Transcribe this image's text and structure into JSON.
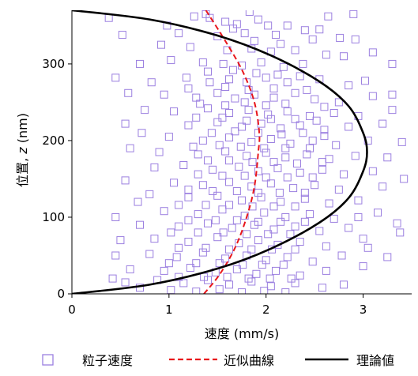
{
  "chart_data": {
    "type": "scatter",
    "xlabel": "速度 (mm/s)",
    "ylabel_prefix": "位置, ",
    "ylabel_var": "z",
    "ylabel_suffix": " (nm)",
    "xlim": [
      0,
      3.5
    ],
    "ylim": [
      0,
      370
    ],
    "xticks": [
      0,
      1,
      2,
      3
    ],
    "yticks": [
      0,
      100,
      200,
      300
    ],
    "grid": false,
    "legend_position": "bottom",
    "colors": {
      "scatter": "#9b7fe0",
      "fit": "#e8161b",
      "theory": "#000000"
    },
    "series": [
      {
        "name": "粒子速度",
        "kind": "scatter",
        "marker": "open-square",
        "points": [
          [
            1.38,
            365
          ],
          [
            1.83,
            368
          ],
          [
            1.42,
            360
          ],
          [
            1.58,
            355
          ],
          [
            1.7,
            352
          ],
          [
            1.92,
            358
          ],
          [
            2.02,
            350
          ],
          [
            2.22,
            350
          ],
          [
            2.4,
            344
          ],
          [
            2.64,
            362
          ],
          [
            1.1,
            340
          ],
          [
            1.5,
            336
          ],
          [
            1.78,
            340
          ],
          [
            2.1,
            338
          ],
          [
            2.48,
            332
          ],
          [
            2.92,
            332
          ],
          [
            0.92,
            325
          ],
          [
            1.22,
            322
          ],
          [
            1.6,
            318
          ],
          [
            1.85,
            320
          ],
          [
            2.05,
            316
          ],
          [
            2.3,
            318
          ],
          [
            2.62,
            312
          ],
          [
            2.8,
            310
          ],
          [
            1.02,
            305
          ],
          [
            1.35,
            302
          ],
          [
            1.56,
            300
          ],
          [
            1.75,
            298
          ],
          [
            1.95,
            302
          ],
          [
            2.18,
            296
          ],
          [
            2.38,
            300
          ],
          [
            0.7,
            300
          ],
          [
            0.45,
            282
          ],
          [
            0.82,
            276
          ],
          [
            1.18,
            282
          ],
          [
            1.42,
            276
          ],
          [
            1.62,
            280
          ],
          [
            1.8,
            276
          ],
          [
            2.0,
            282
          ],
          [
            2.22,
            276
          ],
          [
            2.55,
            280
          ],
          [
            2.85,
            272
          ],
          [
            3.02,
            278
          ],
          [
            0.95,
            260
          ],
          [
            1.28,
            256
          ],
          [
            1.5,
            262
          ],
          [
            1.68,
            255
          ],
          [
            1.88,
            260
          ],
          [
            2.08,
            256
          ],
          [
            2.3,
            262
          ],
          [
            2.5,
            254
          ],
          [
            2.75,
            250
          ],
          [
            3.1,
            258
          ],
          [
            3.3,
            260
          ],
          [
            0.75,
            240
          ],
          [
            1.05,
            238
          ],
          [
            1.4,
            242
          ],
          [
            1.62,
            236
          ],
          [
            1.82,
            240
          ],
          [
            2.02,
            234
          ],
          [
            2.22,
            238
          ],
          [
            2.45,
            232
          ],
          [
            2.7,
            236
          ],
          [
            2.95,
            232
          ],
          [
            3.3,
            240
          ],
          [
            0.55,
            222
          ],
          [
            1.2,
            220
          ],
          [
            1.5,
            224
          ],
          [
            1.75,
            218
          ],
          [
            1.95,
            222
          ],
          [
            2.15,
            216
          ],
          [
            2.35,
            220
          ],
          [
            2.6,
            214
          ],
          [
            2.85,
            218
          ],
          [
            3.2,
            222
          ],
          [
            1.0,
            205
          ],
          [
            1.35,
            200
          ],
          [
            1.62,
            204
          ],
          [
            1.85,
            198
          ],
          [
            2.05,
            202
          ],
          [
            2.25,
            196
          ],
          [
            2.48,
            200
          ],
          [
            2.72,
            194
          ],
          [
            3.05,
            200
          ],
          [
            3.4,
            198
          ],
          [
            0.6,
            190
          ],
          [
            0.9,
            185
          ],
          [
            1.3,
            182
          ],
          [
            1.58,
            186
          ],
          [
            1.8,
            180
          ],
          [
            2.0,
            184
          ],
          [
            2.2,
            178
          ],
          [
            2.42,
            182
          ],
          [
            2.65,
            176
          ],
          [
            2.92,
            180
          ],
          [
            3.25,
            178
          ],
          [
            0.85,
            165
          ],
          [
            1.15,
            168
          ],
          [
            1.45,
            162
          ],
          [
            1.72,
            166
          ],
          [
            1.92,
            160
          ],
          [
            2.12,
            164
          ],
          [
            2.35,
            158
          ],
          [
            2.58,
            162
          ],
          [
            2.8,
            156
          ],
          [
            3.1,
            160
          ],
          [
            0.55,
            148
          ],
          [
            1.05,
            145
          ],
          [
            1.35,
            142
          ],
          [
            1.62,
            146
          ],
          [
            1.85,
            140
          ],
          [
            2.05,
            144
          ],
          [
            2.28,
            138
          ],
          [
            2.5,
            142
          ],
          [
            2.75,
            136
          ],
          [
            3.2,
            140
          ],
          [
            0.8,
            130
          ],
          [
            1.2,
            126
          ],
          [
            1.5,
            128
          ],
          [
            1.75,
            122
          ],
          [
            1.95,
            126
          ],
          [
            2.15,
            120
          ],
          [
            2.4,
            124
          ],
          [
            2.65,
            118
          ],
          [
            2.95,
            122
          ],
          [
            0.45,
            100
          ],
          [
            0.95,
            108
          ],
          [
            1.3,
            104
          ],
          [
            1.55,
            110
          ],
          [
            1.78,
            102
          ],
          [
            1.98,
            106
          ],
          [
            2.2,
            100
          ],
          [
            2.45,
            104
          ],
          [
            2.7,
            98
          ],
          [
            3.15,
            106
          ],
          [
            0.7,
            90
          ],
          [
            1.1,
            88
          ],
          [
            1.4,
            92
          ],
          [
            1.65,
            86
          ],
          [
            1.88,
            90
          ],
          [
            2.08,
            84
          ],
          [
            2.3,
            88
          ],
          [
            2.55,
            82
          ],
          [
            2.85,
            86
          ],
          [
            3.35,
            92
          ],
          [
            0.5,
            70
          ],
          [
            0.85,
            72
          ],
          [
            1.2,
            68
          ],
          [
            1.5,
            74
          ],
          [
            1.72,
            66
          ],
          [
            1.92,
            70
          ],
          [
            2.12,
            64
          ],
          [
            2.35,
            68
          ],
          [
            2.62,
            62
          ],
          [
            3.0,
            72
          ],
          [
            0.45,
            50
          ],
          [
            0.8,
            52
          ],
          [
            1.08,
            48
          ],
          [
            1.35,
            54
          ],
          [
            1.58,
            46
          ],
          [
            1.8,
            50
          ],
          [
            2.0,
            44
          ],
          [
            2.22,
            48
          ],
          [
            2.48,
            42
          ],
          [
            2.78,
            50
          ],
          [
            3.25,
            48
          ],
          [
            0.6,
            32
          ],
          [
            0.95,
            30
          ],
          [
            1.22,
            34
          ],
          [
            1.48,
            28
          ],
          [
            1.7,
            32
          ],
          [
            1.9,
            26
          ],
          [
            2.1,
            30
          ],
          [
            2.35,
            24
          ],
          [
            2.62,
            30
          ],
          [
            3.0,
            36
          ],
          [
            0.55,
            15
          ],
          [
            0.88,
            18
          ],
          [
            1.15,
            14
          ],
          [
            1.4,
            18
          ],
          [
            1.62,
            12
          ],
          [
            1.85,
            16
          ],
          [
            2.05,
            10
          ],
          [
            2.3,
            14
          ],
          [
            2.58,
            8
          ],
          [
            1.02,
            5
          ],
          [
            1.28,
            3
          ],
          [
            1.52,
            6
          ],
          [
            1.75,
            2
          ],
          [
            1.98,
            4
          ],
          [
            2.2,
            2
          ],
          [
            0.38,
            360
          ],
          [
            1.26,
            362
          ],
          [
            1.66,
            346
          ],
          [
            1.88,
            330
          ],
          [
            2.15,
            326
          ],
          [
            2.55,
            345
          ],
          [
            0.98,
            350
          ],
          [
            0.52,
            338
          ],
          [
            3.1,
            315
          ],
          [
            2.76,
            334
          ],
          [
            1.4,
            290
          ],
          [
            1.66,
            292
          ],
          [
            1.9,
            288
          ],
          [
            2.12,
            286
          ],
          [
            2.35,
            284
          ],
          [
            1.2,
            268
          ],
          [
            1.58,
            270
          ],
          [
            1.82,
            266
          ],
          [
            2.08,
            268
          ],
          [
            2.42,
            266
          ],
          [
            1.32,
            248
          ],
          [
            1.58,
            246
          ],
          [
            1.78,
            250
          ],
          [
            2.0,
            246
          ],
          [
            2.2,
            248
          ],
          [
            2.6,
            244
          ],
          [
            1.28,
            230
          ],
          [
            1.55,
            230
          ],
          [
            1.8,
            226
          ],
          [
            2.05,
            228
          ],
          [
            2.3,
            228
          ],
          [
            2.52,
            226
          ],
          [
            1.44,
            210
          ],
          [
            1.68,
            212
          ],
          [
            1.92,
            210
          ],
          [
            2.16,
            208
          ],
          [
            2.38,
            210
          ],
          [
            2.6,
            206
          ],
          [
            1.25,
            192
          ],
          [
            1.52,
            194
          ],
          [
            1.74,
            192
          ],
          [
            1.98,
            190
          ],
          [
            2.2,
            190
          ],
          [
            2.45,
            190
          ],
          [
            1.4,
            174
          ],
          [
            1.62,
            174
          ],
          [
            1.86,
            172
          ],
          [
            2.08,
            172
          ],
          [
            2.32,
            170
          ],
          [
            2.58,
            172
          ],
          [
            1.3,
            156
          ],
          [
            1.55,
            154
          ],
          [
            1.78,
            154
          ],
          [
            2.0,
            152
          ],
          [
            2.22,
            152
          ],
          [
            2.48,
            152
          ],
          [
            1.2,
            136
          ],
          [
            1.45,
            134
          ],
          [
            1.7,
            134
          ],
          [
            1.92,
            132
          ],
          [
            2.14,
            132
          ],
          [
            2.4,
            132
          ],
          [
            1.1,
            116
          ],
          [
            1.38,
            116
          ],
          [
            1.62,
            116
          ],
          [
            1.86,
            114
          ],
          [
            2.08,
            114
          ],
          [
            2.3,
            114
          ],
          [
            1.2,
            96
          ],
          [
            1.48,
            96
          ],
          [
            1.7,
            96
          ],
          [
            1.92,
            94
          ],
          [
            2.15,
            94
          ],
          [
            2.4,
            94
          ],
          [
            1.02,
            80
          ],
          [
            1.3,
            80
          ],
          [
            1.56,
            80
          ],
          [
            1.8,
            78
          ],
          [
            2.02,
            78
          ],
          [
            2.25,
            78
          ],
          [
            1.1,
            60
          ],
          [
            1.38,
            60
          ],
          [
            1.62,
            58
          ],
          [
            1.85,
            58
          ],
          [
            2.06,
            58
          ],
          [
            2.3,
            58
          ],
          [
            1.0,
            40
          ],
          [
            1.28,
            40
          ],
          [
            1.52,
            40
          ],
          [
            1.76,
            38
          ],
          [
            1.96,
            38
          ],
          [
            2.18,
            38
          ],
          [
            1.1,
            22
          ],
          [
            1.36,
            22
          ],
          [
            1.6,
            22
          ],
          [
            1.82,
            20
          ],
          [
            2.04,
            20
          ],
          [
            2.26,
            20
          ],
          [
            0.7,
            8
          ],
          [
            2.8,
            12
          ],
          [
            3.42,
            150
          ],
          [
            3.38,
            80
          ],
          [
            0.42,
            20
          ],
          [
            3.3,
            300
          ],
          [
            2.9,
            365
          ],
          [
            0.72,
            210
          ],
          [
            0.68,
            120
          ],
          [
            3.05,
            60
          ],
          [
            2.95,
            100
          ],
          [
            0.58,
            262
          ]
        ]
      },
      {
        "name": "近似曲線",
        "kind": "line",
        "style": "dashed",
        "points": [
          [
            1.38,
            370
          ],
          [
            1.58,
            330
          ],
          [
            1.76,
            290
          ],
          [
            1.88,
            250
          ],
          [
            1.93,
            210
          ],
          [
            1.92,
            185
          ],
          [
            1.88,
            140
          ],
          [
            1.8,
            100
          ],
          [
            1.68,
            60
          ],
          [
            1.52,
            25
          ],
          [
            1.36,
            0
          ]
        ]
      },
      {
        "name": "理論値",
        "kind": "line",
        "style": "solid",
        "points": [
          [
            0.0,
            370
          ],
          [
            0.8,
            358
          ],
          [
            1.5,
            337
          ],
          [
            2.05,
            311
          ],
          [
            2.55,
            277
          ],
          [
            2.85,
            245
          ],
          [
            3.0,
            210
          ],
          [
            3.04,
            185
          ],
          [
            3.0,
            160
          ],
          [
            2.85,
            125
          ],
          [
            2.55,
            93
          ],
          [
            2.05,
            59
          ],
          [
            1.5,
            33
          ],
          [
            0.8,
            12
          ],
          [
            0.0,
            0
          ]
        ]
      }
    ]
  }
}
